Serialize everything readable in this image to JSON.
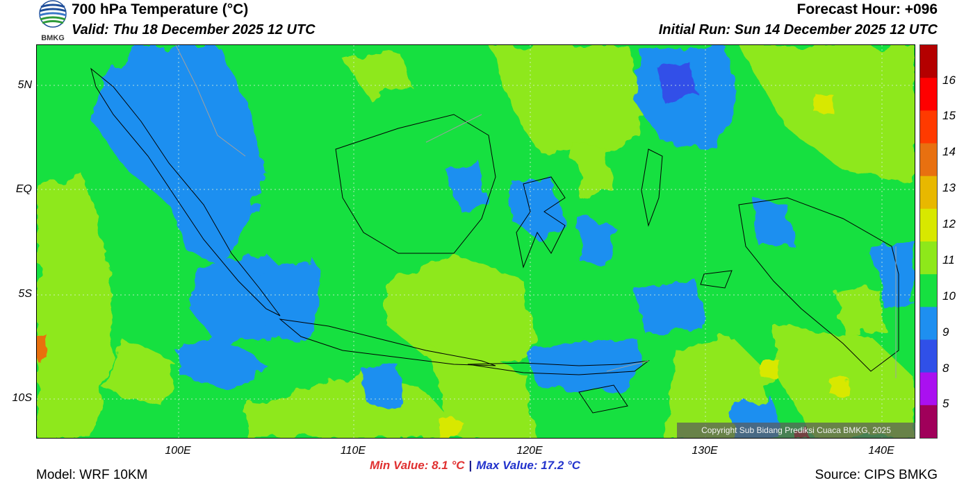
{
  "header": {
    "title": "700 hPa Temperature (°C)",
    "valid": "Valid: Thu 18 December 2025 12 UTC",
    "forecast_hour": "Forecast Hour: +096",
    "initial_run": "Initial Run: Sun 14 December 2025 12 UTC"
  },
  "logo": {
    "text": "BMKG"
  },
  "map": {
    "lat_labels": [
      "5N",
      "EQ",
      "5S",
      "10S"
    ],
    "lon_labels": [
      "100E",
      "110E",
      "120E",
      "130E",
      "140E"
    ],
    "copyright": "Copyright Sub Bidang Prediksi Cuaca BMKG, 2025"
  },
  "colorbar": {
    "levels": [
      "16",
      "15",
      "14",
      "13",
      "12",
      "11",
      "10",
      "9",
      "8",
      "5"
    ],
    "colors": [
      "#b40000",
      "#ff0000",
      "#ff3a00",
      "#e87010",
      "#e8b800",
      "#d8e800",
      "#8ee81a",
      "#16e040",
      "#1e8ff0",
      "#3050e8",
      "#aa10f0",
      "#a0005a"
    ]
  },
  "stats": {
    "min": "Min Value: 8.1 °C",
    "separator": "|",
    "max": "Max Value: 17.2 °C"
  },
  "footer": {
    "model": "Model: WRF 10KM",
    "source": "Source: CIPS BMKG"
  }
}
